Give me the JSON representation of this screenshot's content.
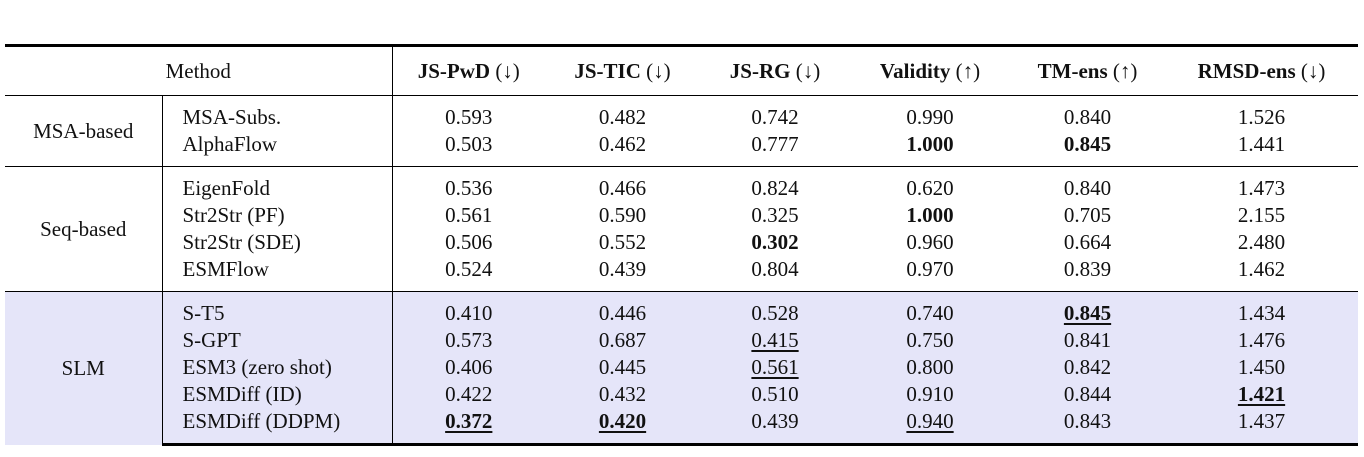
{
  "table": {
    "header": {
      "method": "Method",
      "metrics": [
        {
          "name": "JS-PwD",
          "direction": "(↓)"
        },
        {
          "name": "JS-TIC",
          "direction": "(↓)"
        },
        {
          "name": "JS-RG",
          "direction": "(↓)"
        },
        {
          "name": "Validity",
          "direction": "(↑)"
        },
        {
          "name": "TM-ens",
          "direction": "(↑)"
        },
        {
          "name": "RMSD-ens",
          "direction": "(↓)"
        }
      ]
    },
    "groups": [
      {
        "name": "MSA-based",
        "rows": [
          {
            "method": "MSA-Subs.",
            "cells": [
              "0.593",
              "0.482",
              "0.742",
              "0.990",
              "0.840",
              "1.526"
            ]
          },
          {
            "method": "AlphaFlow",
            "cells": [
              "0.503",
              "0.462",
              "0.777",
              {
                "text": "1.000",
                "style": "bold"
              },
              {
                "text": "0.845",
                "style": "bold"
              },
              "1.441"
            ]
          }
        ]
      },
      {
        "name": "Seq-based",
        "rows": [
          {
            "method": "EigenFold",
            "cells": [
              "0.536",
              "0.466",
              "0.824",
              "0.620",
              "0.840",
              "1.473"
            ]
          },
          {
            "method": "Str2Str (PF)",
            "cells": [
              "0.561",
              "0.590",
              "0.325",
              {
                "text": "1.000",
                "style": "bold"
              },
              "0.705",
              "2.155"
            ]
          },
          {
            "method": "Str2Str (SDE)",
            "cells": [
              "0.506",
              "0.552",
              {
                "text": "0.302",
                "style": "bold"
              },
              "0.960",
              "0.664",
              "2.480"
            ]
          },
          {
            "method": "ESMFlow",
            "cells": [
              "0.524",
              "0.439",
              "0.804",
              "0.970",
              "0.839",
              "1.462"
            ]
          }
        ]
      },
      {
        "name": "SLM",
        "highlight": "#e5e5f9",
        "rows": [
          {
            "method": "S-T5",
            "cells": [
              "0.410",
              "0.446",
              "0.528",
              "0.740",
              {
                "text": "0.845",
                "style": "bold-underline"
              },
              "1.434"
            ]
          },
          {
            "method": "S-GPT",
            "cells": [
              "0.573",
              "0.687",
              {
                "text": "0.415",
                "style": "underline"
              },
              "0.750",
              "0.841",
              "1.476"
            ]
          },
          {
            "method": "ESM3 (zero shot)",
            "cells": [
              "0.406",
              "0.445",
              {
                "text": "0.561",
                "style": "underline"
              },
              "0.800",
              "0.842",
              "1.450"
            ]
          },
          {
            "method": "ESMDiff (ID)",
            "cells": [
              "0.422",
              "0.432",
              "0.510",
              "0.910",
              "0.844",
              {
                "text": "1.421",
                "style": "bold-underline"
              }
            ]
          },
          {
            "method": "ESMDiff (DDPM)",
            "cells": [
              {
                "text": "0.372",
                "style": "bold-underline"
              },
              {
                "text": "0.420",
                "style": "bold-underline"
              },
              "0.439",
              {
                "text": "0.940",
                "style": "underline"
              },
              "0.843",
              "1.437"
            ]
          }
        ]
      }
    ]
  }
}
